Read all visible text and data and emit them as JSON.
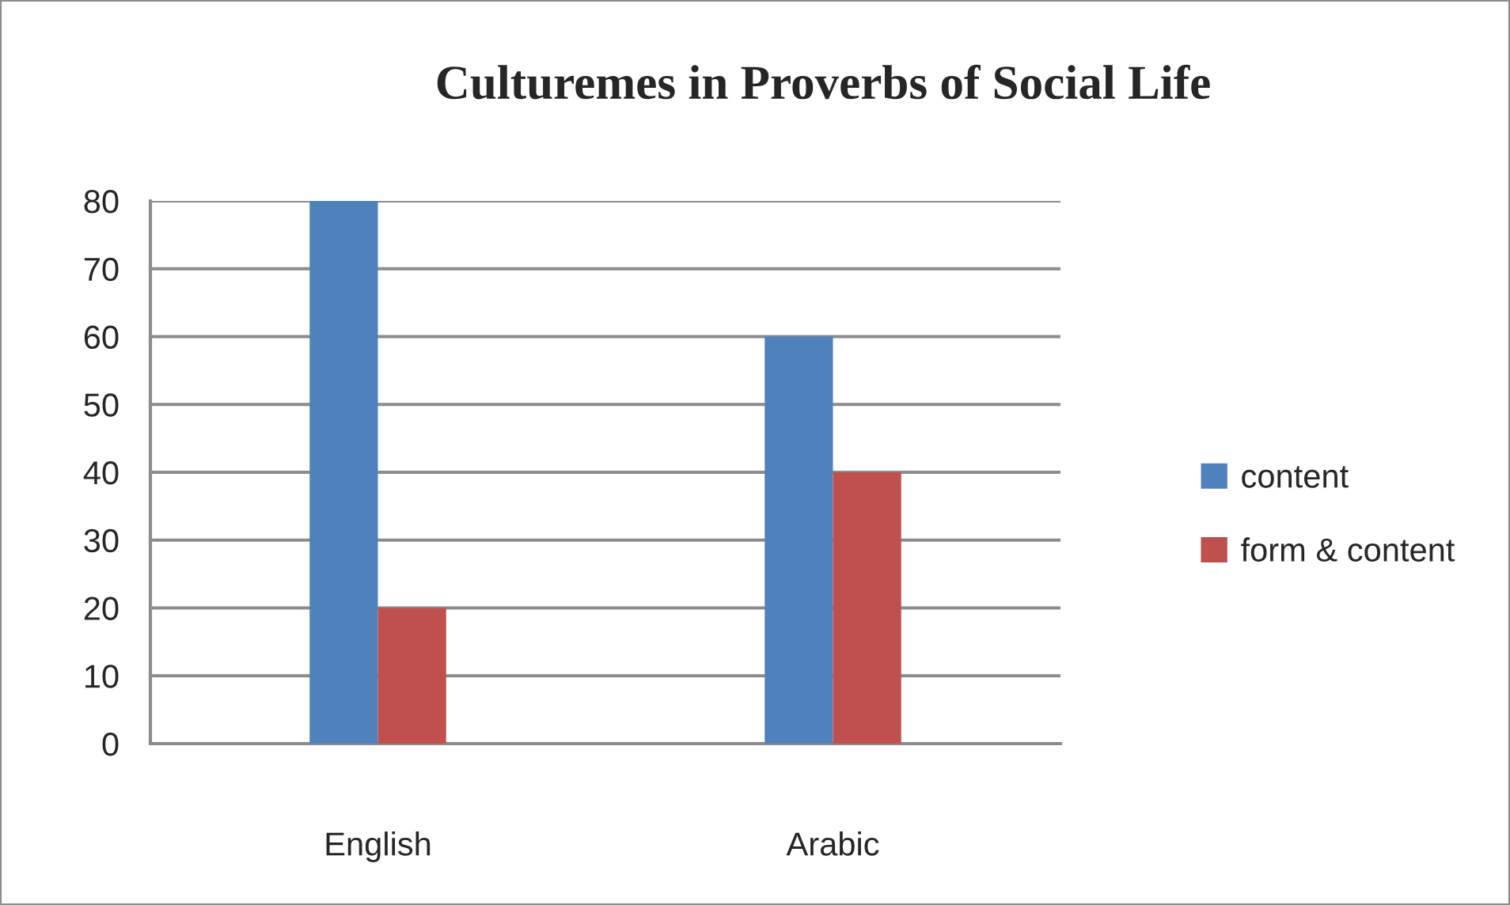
{
  "chart_data": {
    "type": "bar",
    "title": "Culturemes in Proverbs of Social Life",
    "categories": [
      "English",
      "Arabic"
    ],
    "series": [
      {
        "name": "content",
        "color": "#4f81bd",
        "values": [
          80,
          60
        ]
      },
      {
        "name": "form & content",
        "color": "#c0504d",
        "values": [
          20,
          40
        ]
      }
    ],
    "ylim": [
      0,
      80
    ],
    "yticks": [
      0,
      10,
      20,
      30,
      40,
      50,
      60,
      70,
      80
    ],
    "grid": "y",
    "legend": "right"
  }
}
